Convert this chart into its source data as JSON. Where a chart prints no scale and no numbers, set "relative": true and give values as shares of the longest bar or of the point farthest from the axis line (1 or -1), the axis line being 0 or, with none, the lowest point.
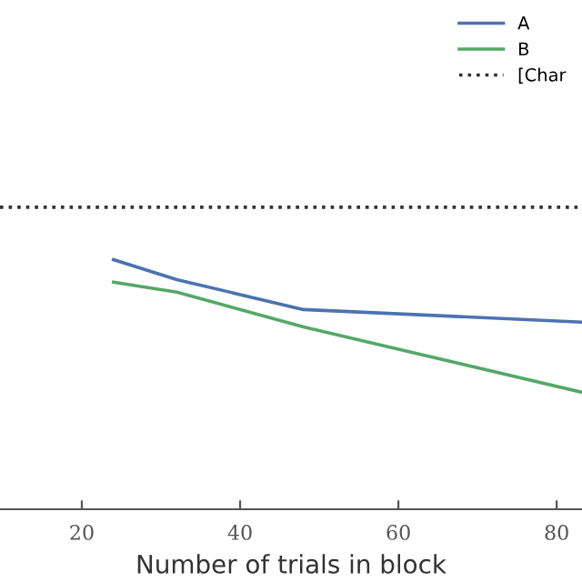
{
  "chart_data": {
    "type": "line",
    "xlabel": "Number of trials in block",
    "relative": true,
    "x": [
      24,
      32,
      48,
      83
    ],
    "series": [
      {
        "name": "A",
        "color": "#4c72b0",
        "values": [
          1,
          0.92,
          0.8,
          0.75
        ]
      },
      {
        "name": "B",
        "color": "#55a868",
        "values": [
          0.91,
          0.87,
          0.73,
          0.47
        ]
      }
    ],
    "ref_lines": [
      {
        "axis": "y",
        "value": 1.21,
        "label": "[Char",
        "color": "#333333",
        "line_style": "dotted"
      }
    ],
    "xlim": [
      9.66,
      83.2
    ],
    "xticks": [
      20,
      40,
      60,
      80
    ],
    "legend": "top right",
    "grid": false,
    "marker": "none",
    "line_style": "solid"
  }
}
